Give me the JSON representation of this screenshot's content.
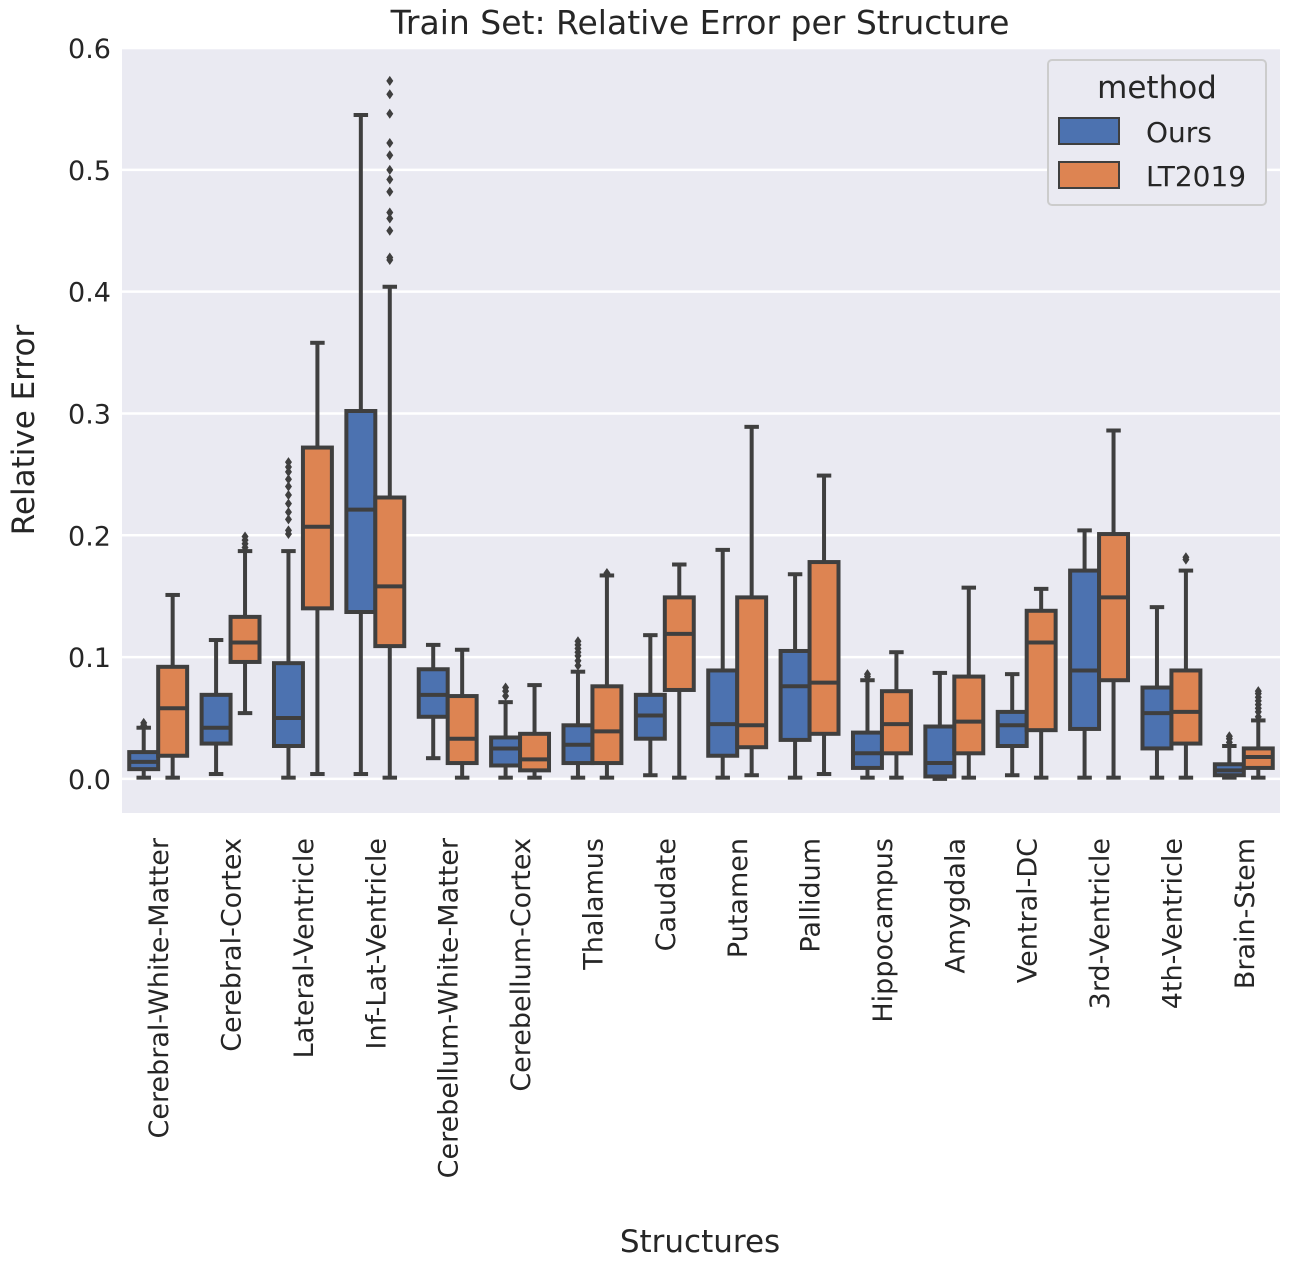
{
  "chart_data": {
    "type": "box",
    "title": "Train Set: Relative Error per Structure",
    "xlabel": "Structures",
    "ylabel": "Relative Error",
    "ylim": [
      -0.028,
      0.6
    ],
    "yticks": [
      0.0,
      0.1,
      0.2,
      0.3,
      0.4,
      0.5,
      0.6
    ],
    "ytick_labels": [
      "0.0",
      "0.1",
      "0.2",
      "0.3",
      "0.4",
      "0.5",
      "0.6"
    ],
    "grid": true,
    "legend": {
      "title": "method",
      "placement": "top-right"
    },
    "categories": [
      "Cerebral-White-Matter",
      "Cerebral-Cortex",
      "Lateral-Ventricle",
      "Inf-Lat-Ventricle",
      "Cerebellum-White-Matter",
      "Cerebellum-Cortex",
      "Thalamus",
      "Caudate",
      "Putamen",
      "Pallidum",
      "Hippocampus",
      "Amygdala",
      "Ventral-DC",
      "3rd-Ventricle",
      "4th-Ventricle",
      "Brain-Stem"
    ],
    "series": [
      {
        "name": "Ours",
        "color": "#4c72b0",
        "boxes": [
          {
            "whislo": 0.001,
            "q1": 0.008,
            "med": 0.014,
            "q3": 0.022,
            "whishi": 0.042,
            "fliers": [
              0.044,
              0.046
            ]
          },
          {
            "whislo": 0.004,
            "q1": 0.029,
            "med": 0.042,
            "q3": 0.069,
            "whishi": 0.114,
            "fliers": []
          },
          {
            "whislo": 0.001,
            "q1": 0.027,
            "med": 0.05,
            "q3": 0.095,
            "whishi": 0.187,
            "fliers": [
              0.201,
              0.204,
              0.213,
              0.219,
              0.226,
              0.233,
              0.24,
              0.246,
              0.252,
              0.256,
              0.26
            ]
          },
          {
            "whislo": 0.004,
            "q1": 0.137,
            "med": 0.221,
            "q3": 0.302,
            "whishi": 0.545,
            "fliers": []
          },
          {
            "whislo": 0.017,
            "q1": 0.051,
            "med": 0.069,
            "q3": 0.09,
            "whishi": 0.11,
            "fliers": []
          },
          {
            "whislo": 0.001,
            "q1": 0.011,
            "med": 0.025,
            "q3": 0.034,
            "whishi": 0.063,
            "fliers": [
              0.068,
              0.072,
              0.075
            ]
          },
          {
            "whislo": 0.001,
            "q1": 0.013,
            "med": 0.028,
            "q3": 0.044,
            "whishi": 0.088,
            "fliers": [
              0.093,
              0.097,
              0.101,
              0.104,
              0.107,
              0.11,
              0.113
            ]
          },
          {
            "whislo": 0.003,
            "q1": 0.033,
            "med": 0.052,
            "q3": 0.069,
            "whishi": 0.118,
            "fliers": []
          },
          {
            "whislo": 0.001,
            "q1": 0.019,
            "med": 0.045,
            "q3": 0.089,
            "whishi": 0.188,
            "fliers": []
          },
          {
            "whislo": 0.001,
            "q1": 0.032,
            "med": 0.076,
            "q3": 0.105,
            "whishi": 0.168,
            "fliers": []
          },
          {
            "whislo": 0.001,
            "q1": 0.009,
            "med": 0.021,
            "q3": 0.038,
            "whishi": 0.081,
            "fliers": [
              0.084,
              0.086
            ]
          },
          {
            "whislo": 0.0,
            "q1": 0.002,
            "med": 0.013,
            "q3": 0.043,
            "whishi": 0.087,
            "fliers": []
          },
          {
            "whislo": 0.003,
            "q1": 0.027,
            "med": 0.044,
            "q3": 0.055,
            "whishi": 0.086,
            "fliers": []
          },
          {
            "whislo": 0.001,
            "q1": 0.041,
            "med": 0.089,
            "q3": 0.171,
            "whishi": 0.204,
            "fliers": []
          },
          {
            "whislo": 0.001,
            "q1": 0.025,
            "med": 0.054,
            "q3": 0.075,
            "whishi": 0.141,
            "fliers": []
          },
          {
            "whislo": 0.001,
            "q1": 0.003,
            "med": 0.007,
            "q3": 0.012,
            "whishi": 0.027,
            "fliers": [
              0.03,
              0.033,
              0.035
            ]
          }
        ]
      },
      {
        "name": "LT2019",
        "color": "#dd8452",
        "boxes": [
          {
            "whislo": 0.001,
            "q1": 0.019,
            "med": 0.058,
            "q3": 0.092,
            "whishi": 0.151,
            "fliers": []
          },
          {
            "whislo": 0.054,
            "q1": 0.096,
            "med": 0.112,
            "q3": 0.133,
            "whishi": 0.187,
            "fliers": [
              0.19,
              0.193,
              0.196,
              0.199
            ]
          },
          {
            "whislo": 0.004,
            "q1": 0.14,
            "med": 0.207,
            "q3": 0.272,
            "whishi": 0.358,
            "fliers": []
          },
          {
            "whislo": 0.001,
            "q1": 0.109,
            "med": 0.158,
            "q3": 0.231,
            "whishi": 0.404,
            "fliers": [
              0.426,
              0.428,
              0.45,
              0.46,
              0.465,
              0.482,
              0.492,
              0.5,
              0.512,
              0.522,
              0.546,
              0.562,
              0.573
            ]
          },
          {
            "whislo": 0.001,
            "q1": 0.013,
            "med": 0.033,
            "q3": 0.068,
            "whishi": 0.106,
            "fliers": []
          },
          {
            "whislo": 0.001,
            "q1": 0.007,
            "med": 0.016,
            "q3": 0.037,
            "whishi": 0.077,
            "fliers": []
          },
          {
            "whislo": 0.001,
            "q1": 0.013,
            "med": 0.039,
            "q3": 0.076,
            "whishi": 0.167,
            "fliers": [
              0.169
            ]
          },
          {
            "whislo": 0.001,
            "q1": 0.073,
            "med": 0.119,
            "q3": 0.149,
            "whishi": 0.176,
            "fliers": []
          },
          {
            "whislo": 0.003,
            "q1": 0.026,
            "med": 0.044,
            "q3": 0.149,
            "whishi": 0.289,
            "fliers": []
          },
          {
            "whislo": 0.004,
            "q1": 0.037,
            "med": 0.079,
            "q3": 0.178,
            "whishi": 0.249,
            "fliers": []
          },
          {
            "whislo": 0.001,
            "q1": 0.021,
            "med": 0.045,
            "q3": 0.072,
            "whishi": 0.104,
            "fliers": []
          },
          {
            "whislo": 0.001,
            "q1": 0.021,
            "med": 0.047,
            "q3": 0.084,
            "whishi": 0.157,
            "fliers": []
          },
          {
            "whislo": 0.001,
            "q1": 0.04,
            "med": 0.112,
            "q3": 0.138,
            "whishi": 0.156,
            "fliers": []
          },
          {
            "whislo": 0.001,
            "q1": 0.081,
            "med": 0.149,
            "q3": 0.201,
            "whishi": 0.286,
            "fliers": []
          },
          {
            "whislo": 0.001,
            "q1": 0.029,
            "med": 0.055,
            "q3": 0.089,
            "whishi": 0.171,
            "fliers": [
              0.18,
              0.182
            ]
          },
          {
            "whislo": 0.001,
            "q1": 0.009,
            "med": 0.018,
            "q3": 0.025,
            "whishi": 0.048,
            "fliers": [
              0.051,
              0.055,
              0.058,
              0.061,
              0.064,
              0.067,
              0.07,
              0.072
            ]
          }
        ]
      }
    ]
  }
}
